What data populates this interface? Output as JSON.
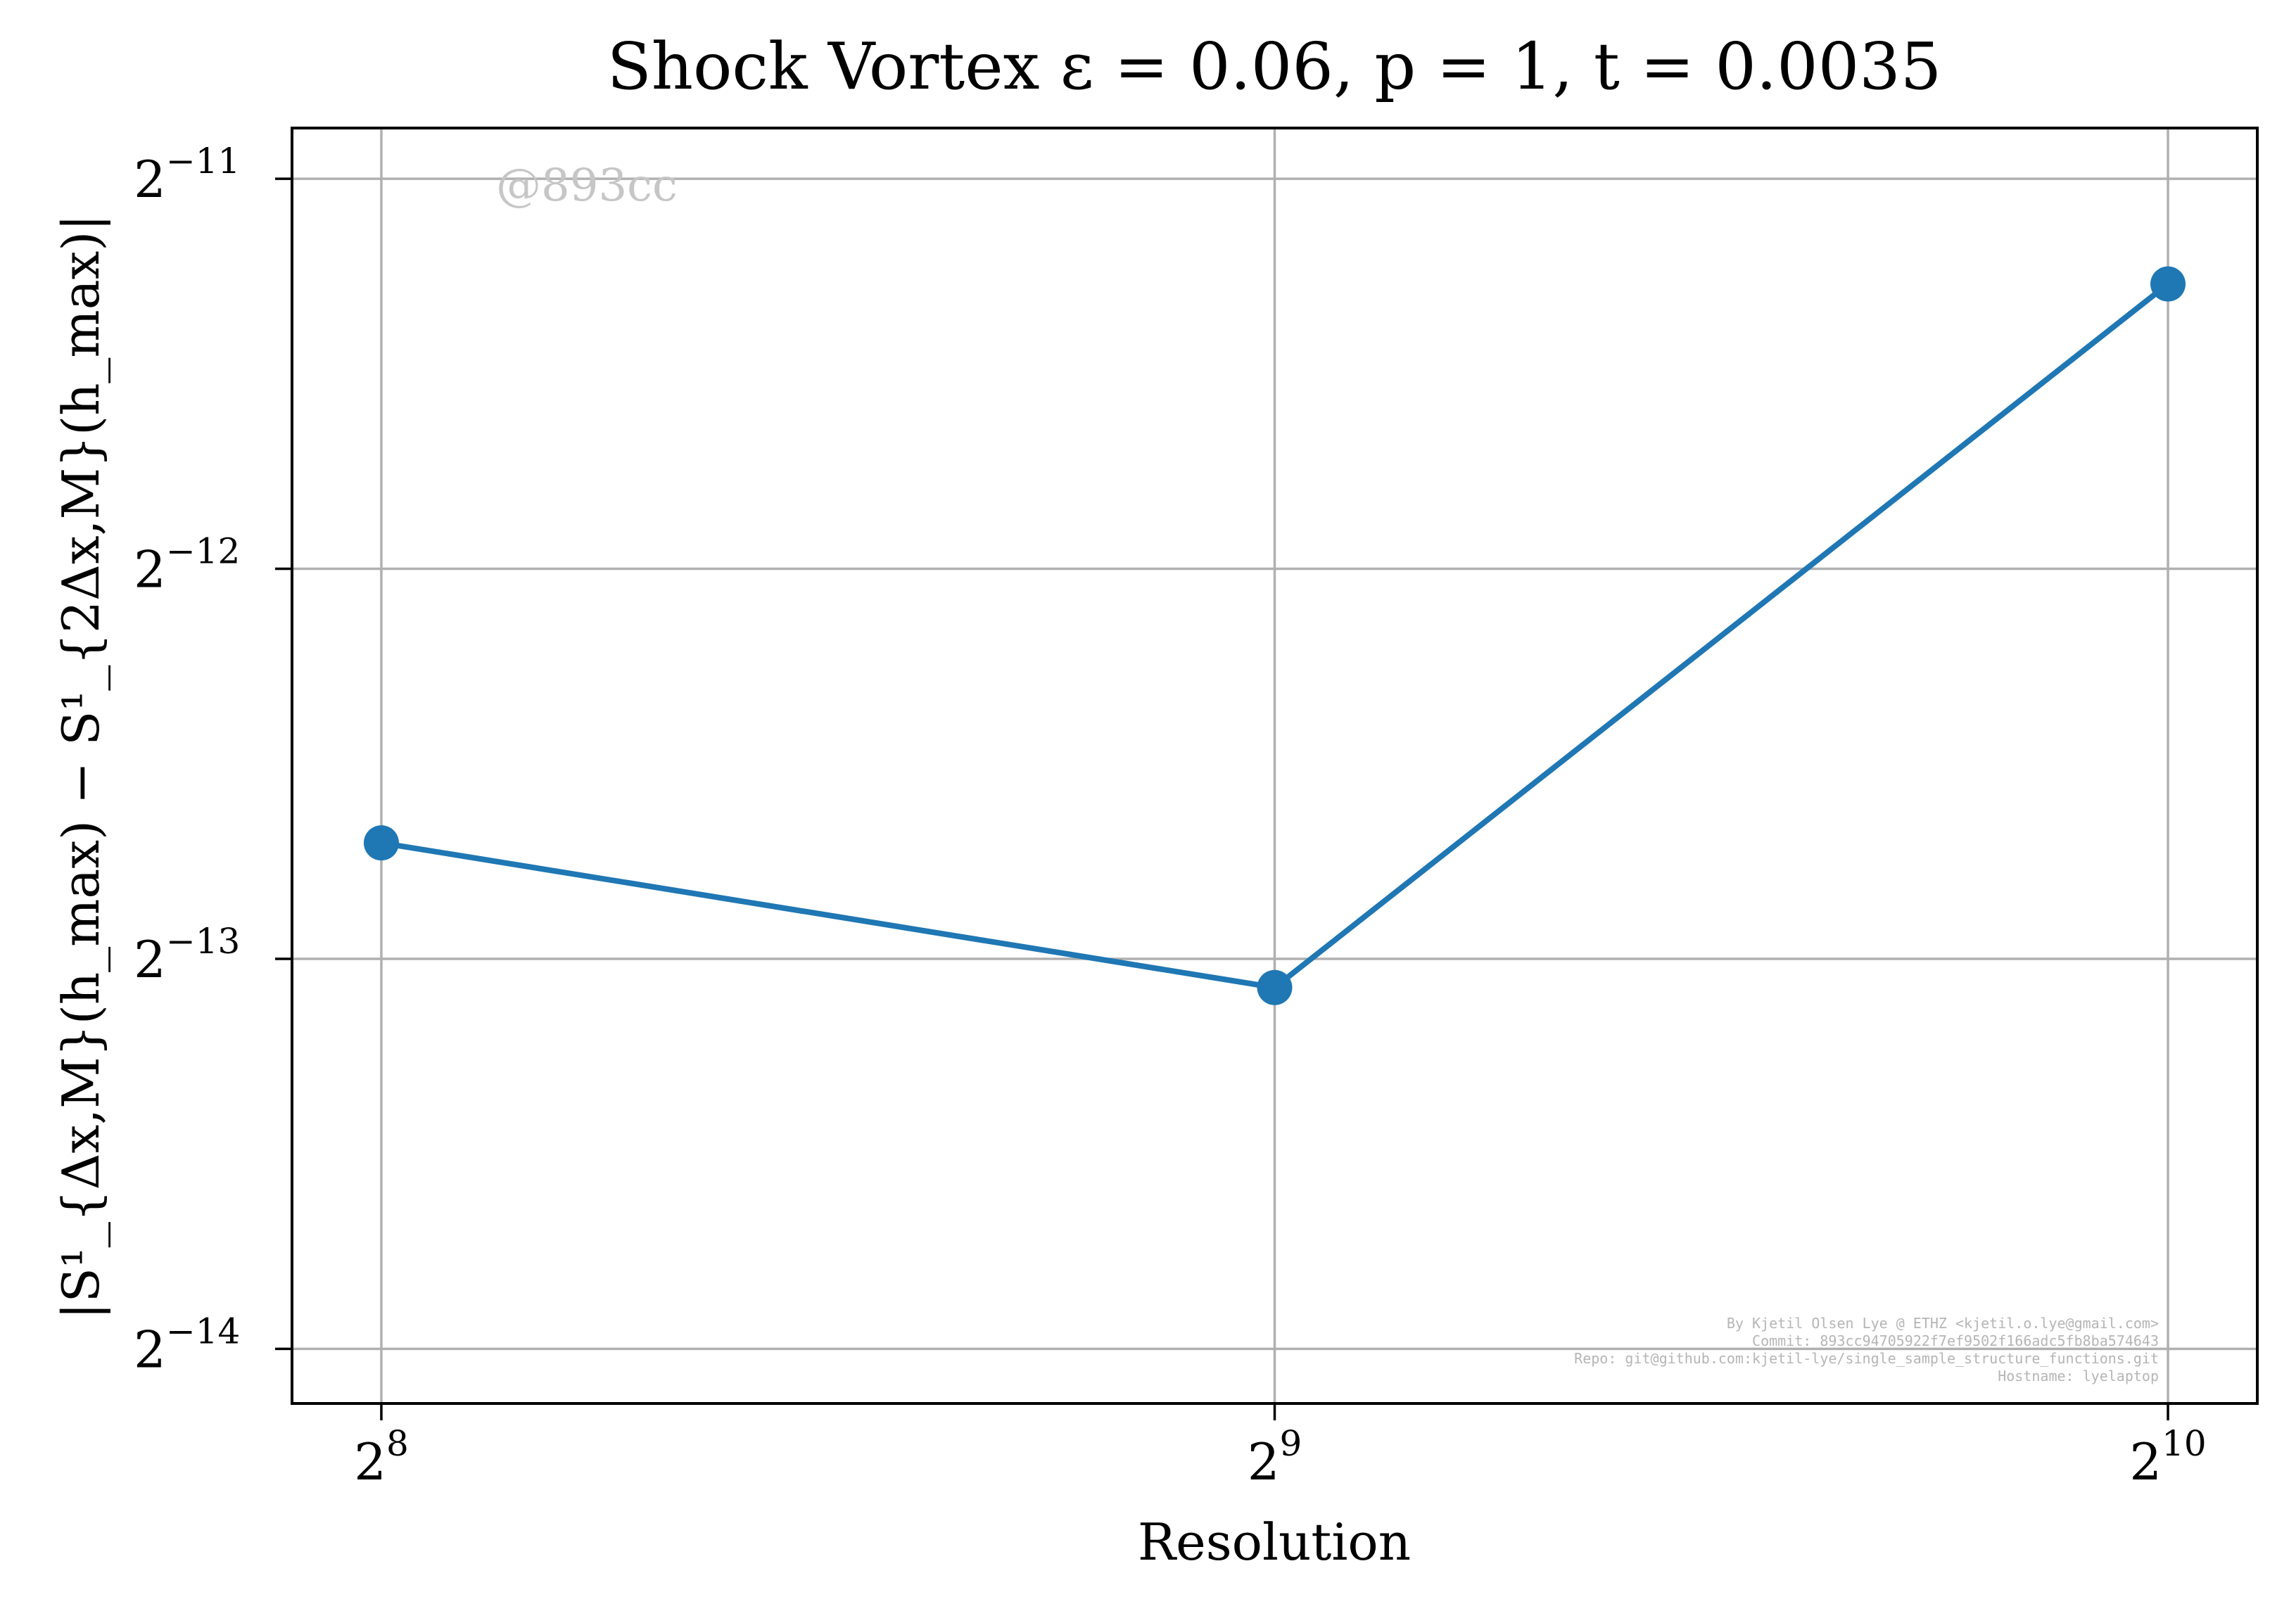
{
  "chart_data": {
    "type": "line",
    "title": "Shock Vortex ε = 0.06, p = 1, t = 0.0035",
    "xlabel": "Resolution",
    "ylabel": "|S¹_{Δx,M}(h_max) − S¹_{2Δx,M}(h_max)|",
    "x_scale": "log2",
    "y_scale": "log2",
    "x": [
      256,
      512,
      1024
    ],
    "y": [
      0.00015,
      0.000116,
      0.000405
    ],
    "xlim_exp2": [
      7.9,
      10.1
    ],
    "ylim_exp2": [
      -14.14,
      -10.87
    ],
    "x_ticks": [
      {
        "base": "2",
        "exp": "8",
        "exp2": 8
      },
      {
        "base": "2",
        "exp": "9",
        "exp2": 9
      },
      {
        "base": "2",
        "exp": "10",
        "exp2": 10
      }
    ],
    "y_ticks": [
      {
        "base": "2",
        "exp": "−11",
        "exp2": -11
      },
      {
        "base": "2",
        "exp": "−12",
        "exp2": -12
      },
      {
        "base": "2",
        "exp": "−13",
        "exp2": -13
      },
      {
        "base": "2",
        "exp": "−14",
        "exp2": -14
      }
    ],
    "grid": true,
    "series_color": "#1f77b4",
    "grid_color": "#b0b0b0",
    "watermark": "@893cc",
    "credits": [
      "By Kjetil Olsen Lye @ ETHZ <kjetil.o.lye@gmail.com>",
      "Commit: 893cc94705922f7ef9502f166adc5fb8ba574643",
      "Repo: git@github.com:kjetil-lye/single_sample_structure_functions.git",
      "Hostname: lyelaptop"
    ]
  }
}
